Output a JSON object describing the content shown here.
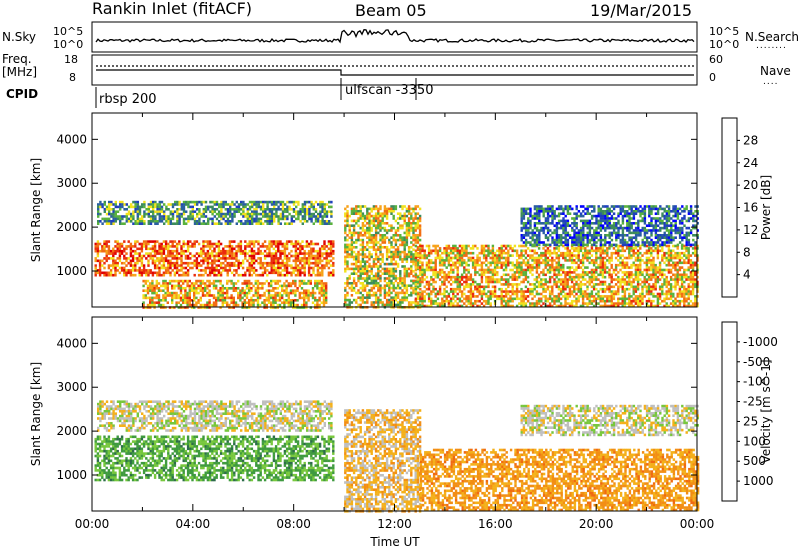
{
  "header": {
    "station": "Rankin Inlet (fitACF)",
    "beam": "Beam 05",
    "date": "19/Mar/2015"
  },
  "strips": {
    "nsky_label": "N.Sky",
    "nsearch_label": "N.Search",
    "nsearch_marker": "........",
    "freq_label_1": "Freq.",
    "freq_label_2": "[MHz]",
    "nave_label": "Nave",
    "nave_marker": "....",
    "cpid_label": "CPID",
    "left_ticks_noise": [
      "10^5",
      "10^0"
    ],
    "right_ticks_noise": [
      "10^5",
      "10^0"
    ],
    "left_ticks_freq": [
      "18",
      "8"
    ],
    "right_ticks_nave": [
      "60",
      "0"
    ],
    "cpid_segments": [
      {
        "start_h": 0.0,
        "end_h": 9.85,
        "label": "rbsp 200"
      },
      {
        "start_h": 9.85,
        "end_h": 24.0,
        "label": "ulfscan -3350"
      }
    ]
  },
  "colors": {
    "power_scale": [
      "#0000ff",
      "#1f3fbf",
      "#2a5fa0",
      "#3c8c5a",
      "#59b23c",
      "#f2e21e",
      "#f7a21a",
      "#f26d12",
      "#ea2b0c",
      "#e00000"
    ],
    "velocity_scale": [
      "#2340b8",
      "#2c5fc0",
      "#2d6c4a",
      "#3f9a3f",
      "#77c73c",
      "#bfbfbf",
      "#f4b01a",
      "#f28e14",
      "#f06a10",
      "#e83a0b",
      "#e00000"
    ]
  },
  "chart_data": [
    {
      "type": "heatmap",
      "title": "",
      "xlabel": "Time UT",
      "ylabel": "Slant Range [km]",
      "colorbar_label": "Power [dB]",
      "xlim": [
        0,
        24
      ],
      "ylim": [
        180,
        4600
      ],
      "x_ticks": [
        "00:00",
        "04:00",
        "08:00",
        "12:00",
        "16:00",
        "20:00",
        "00:00"
      ],
      "y_ticks": [
        "1000",
        "2000",
        "3000",
        "4000"
      ],
      "colorbar_ticks": [
        "4",
        "8",
        "12",
        "16",
        "20",
        "24",
        "28"
      ],
      "colorbar_range": [
        0,
        32
      ],
      "regions": [
        {
          "x": [
            0.1,
            9.6
          ],
          "y": [
            900,
            1700
          ],
          "value": 24
        },
        {
          "x": [
            0.2,
            9.5
          ],
          "y": [
            2100,
            2600
          ],
          "value": 12
        },
        {
          "x": [
            2.0,
            9.3
          ],
          "y": [
            180,
            800
          ],
          "value": 20
        },
        {
          "x": [
            10.0,
            13.0
          ],
          "y": [
            180,
            2500
          ],
          "value": 18
        },
        {
          "x": [
            12.8,
            24.0
          ],
          "y": [
            180,
            1600
          ],
          "value": 20
        },
        {
          "x": [
            17.0,
            24.0
          ],
          "y": [
            1600,
            2500
          ],
          "value": 8
        }
      ]
    },
    {
      "type": "heatmap",
      "title": "",
      "xlabel": "Time UT",
      "ylabel": "Slant Range [km]",
      "colorbar_label": "Velocity [m s^-1]",
      "xlim": [
        0,
        24
      ],
      "ylim": [
        180,
        4600
      ],
      "x_ticks": [
        "00:00",
        "04:00",
        "08:00",
        "12:00",
        "16:00",
        "20:00",
        "00:00"
      ],
      "y_ticks": [
        "1000",
        "2000",
        "3000",
        "4000"
      ],
      "colorbar_ticks": [
        "1000",
        "500",
        "100",
        "25",
        "-25",
        "-100",
        "-500",
        "-1000"
      ],
      "regions": [
        {
          "x": [
            0.1,
            9.6
          ],
          "y": [
            900,
            1900
          ],
          "value": 300
        },
        {
          "x": [
            0.2,
            9.5
          ],
          "y": [
            2000,
            2700
          ],
          "value": 0
        },
        {
          "x": [
            10.0,
            13.0
          ],
          "y": [
            180,
            2500
          ],
          "value": -150
        },
        {
          "x": [
            13.0,
            24.0
          ],
          "y": [
            180,
            1600
          ],
          "value": -300
        },
        {
          "x": [
            17.0,
            24.0
          ],
          "y": [
            1900,
            2600
          ],
          "value": 0
        }
      ]
    }
  ]
}
